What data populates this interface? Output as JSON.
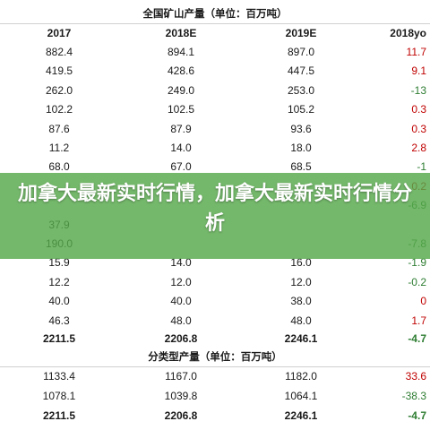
{
  "table": {
    "title": "全国矿山产量（单位：百万吨）",
    "headers": [
      "2017",
      "2018E",
      "2019E",
      "2018yo"
    ],
    "rows": [
      [
        "882.4",
        "894.1",
        "897.0",
        "11.7"
      ],
      [
        "419.5",
        "428.6",
        "447.5",
        "9.1"
      ],
      [
        "262.0",
        "249.0",
        "253.0",
        "-13"
      ],
      [
        "102.2",
        "102.5",
        "105.2",
        "0.3"
      ],
      [
        "87.6",
        "87.9",
        "93.6",
        "0.3"
      ],
      [
        "11.2",
        "14.0",
        "18.0",
        "2.8"
      ],
      [
        "68.0",
        "67.0",
        "68.5",
        "-1"
      ],
      [
        "",
        "",
        "",
        "0.2"
      ],
      [
        "",
        "",
        "",
        "-6.9"
      ],
      [
        "37.9",
        "",
        "",
        ""
      ],
      [
        "190.0",
        "",
        "",
        "-7.8"
      ],
      [
        "15.9",
        "14.0",
        "16.0",
        "-1.9"
      ],
      [
        "12.2",
        "12.0",
        "12.0",
        "-0.2"
      ],
      [
        "40.0",
        "40.0",
        "38.0",
        "0"
      ],
      [
        "46.3",
        "48.0",
        "48.0",
        "1.7"
      ]
    ],
    "total": [
      "2211.5",
      "2206.8",
      "2246.1",
      "-4.7"
    ],
    "subtitle": "分类型产量（单位：百万吨）",
    "sub_rows": [
      [
        "1133.4",
        "1167.0",
        "1182.0",
        "33.6"
      ],
      [
        "1078.1",
        "1039.8",
        "1064.1",
        "-38.3"
      ]
    ],
    "sub_total": [
      "2211.5",
      "2206.8",
      "2246.1",
      "-4.7"
    ]
  },
  "overlay": {
    "headline": "加拿大最新实时行情，加拿大最新实时行情分析",
    "color": "#56a84a"
  },
  "colors": {
    "positive": "#c00000",
    "negative": "#2e7d32"
  }
}
